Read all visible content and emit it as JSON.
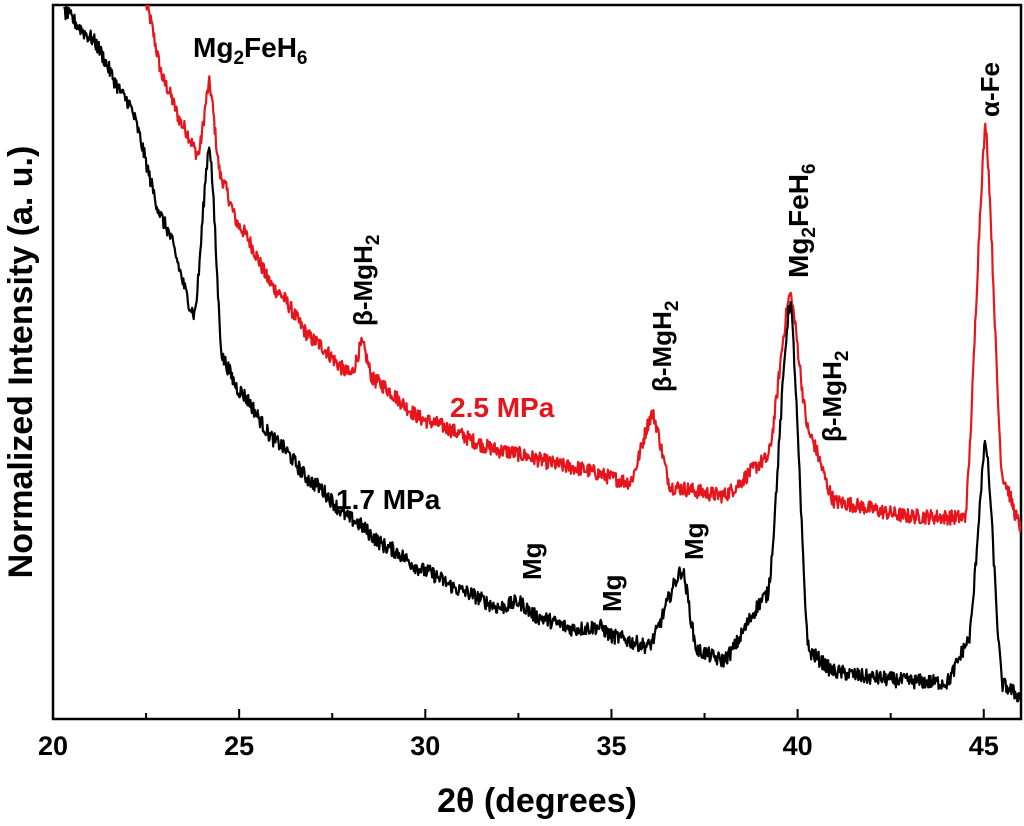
{
  "chart_data": {
    "type": "line",
    "title": "",
    "xlabel": "2θ (degrees)",
    "ylabel": "Normalized Intensity (a. u.)",
    "xlim": [
      20,
      46
    ],
    "ylim": [
      0,
      100
    ],
    "x_ticks": [
      20,
      25,
      30,
      35,
      40,
      45
    ],
    "x_tick_labels": [
      "20",
      "25",
      "30",
      "35",
      "40",
      "45"
    ],
    "y_ticks_shown": false,
    "grid": false,
    "colors": {
      "red_series": "#e8141c",
      "black_series": "#000000",
      "axis": "#000000"
    },
    "series": [
      {
        "name": "2.5 MPa",
        "color": "#e8141c",
        "x": [
          22.5,
          23.0,
          23.5,
          23.9,
          24.2,
          24.5,
          25.0,
          26.0,
          27.0,
          28.0,
          28.3,
          28.6,
          30.0,
          32.0,
          34.0,
          35.5,
          36.1,
          36.6,
          38.0,
          39.2,
          39.8,
          40.3,
          41.0,
          43.0,
          44.5,
          45.05,
          45.5,
          46.0
        ],
        "y": [
          100,
          89,
          83,
          79,
          89,
          76,
          69,
          60,
          53,
          48.2,
          52.5,
          47.5,
          41.8,
          37.6,
          35.2,
          33.2,
          42.8,
          32.5,
          31.3,
          36.5,
          59.6,
          40,
          30.4,
          28.4,
          28.2,
          83.2,
          34,
          26.8
        ]
      },
      {
        "name": "1.7 MPa",
        "color": "#000000",
        "x": [
          20.3,
          21.0,
          22.0,
          23.0,
          23.8,
          24.2,
          24.55,
          25.0,
          26.0,
          27.0,
          28.0,
          29.0,
          30.0,
          31.0,
          32.0,
          32.5,
          33.0,
          34.0,
          34.7,
          35.0,
          36.0,
          36.9,
          37.3,
          38.0,
          39.2,
          39.8,
          40.3,
          41.0,
          42.0,
          43.0,
          44.0,
          44.6,
          45.05,
          45.5,
          46.0
        ],
        "y": [
          99,
          95.5,
          86.6,
          69.3,
          56.6,
          80.7,
          50.5,
          46,
          38.8,
          33,
          28,
          24,
          20.7,
          17.9,
          15.6,
          16.4,
          14.3,
          12.6,
          12.9,
          11.6,
          10.2,
          20.9,
          9.6,
          8.2,
          17.5,
          58.8,
          9.4,
          6.6,
          5.8,
          5.3,
          5.1,
          11,
          38.8,
          4.8,
          3.1
        ]
      }
    ],
    "annotations": [
      {
        "key": "mg2feh6_24",
        "main": "Mg",
        "sub1": "2",
        "mid": "FeH",
        "sub2": "6"
      },
      {
        "key": "mgh2_28",
        "main": "β-MgH",
        "sub1": "2"
      },
      {
        "key": "mgh2_36",
        "main": "β-MgH",
        "sub1": "2"
      },
      {
        "key": "mg2feh6_40",
        "main": "Mg",
        "sub1": "2",
        "mid": "FeH",
        "sub2": "6"
      },
      {
        "key": "mgh2_40",
        "main": "β-MgH",
        "sub1": "2"
      },
      {
        "key": "alpha_fe",
        "main": "α-Fe"
      },
      {
        "key": "mg_32",
        "main": "Mg"
      },
      {
        "key": "mg_34",
        "main": "Mg"
      },
      {
        "key": "mg_37",
        "main": "Mg"
      }
    ],
    "series_labels": {
      "red": "2.5 MPa",
      "black": "1.7 MPa"
    }
  }
}
